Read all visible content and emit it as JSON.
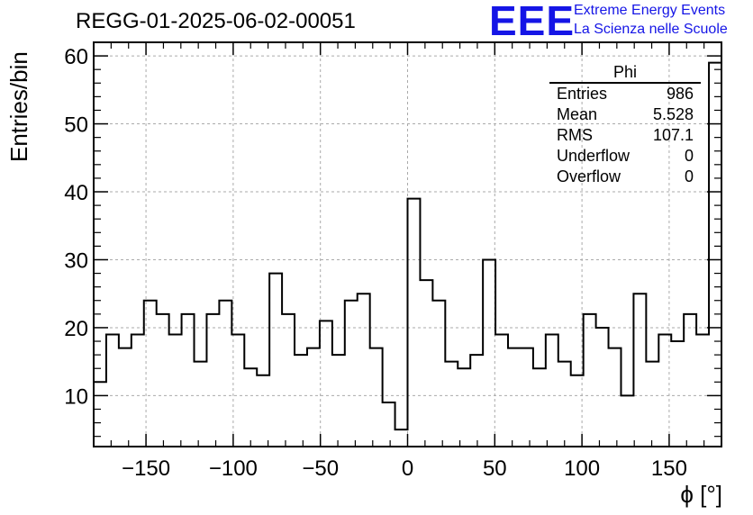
{
  "header": {
    "title": "REGG-01-2025-06-02-00051",
    "logo_text": "EEE",
    "logo_line1": "Extreme Energy Events",
    "logo_line2": "La Scienza nelle Scuole"
  },
  "stats": {
    "name": "Phi",
    "rows": [
      {
        "label": "Entries",
        "value": "986"
      },
      {
        "label": "Mean",
        "value": "5.528"
      },
      {
        "label": "RMS",
        "value": "107.1"
      },
      {
        "label": "Underflow",
        "value": "0"
      },
      {
        "label": "Overflow",
        "value": "0"
      }
    ]
  },
  "colors": {
    "logo": "#1515e6",
    "line": "#000000",
    "grid": "#aaaaaa"
  },
  "chart_data": {
    "type": "bar",
    "histogram": true,
    "title": "REGG-01-2025-06-02-00051",
    "xlabel": "ϕ [°]",
    "ylabel": "Entries/bin",
    "xlim": [
      -180,
      180
    ],
    "ylim": [
      2.5,
      62
    ],
    "grid": true,
    "bin_edges_start": -180,
    "bin_width": 7.2,
    "values": [
      12,
      19,
      17,
      19,
      24,
      22,
      19,
      22,
      15,
      22,
      24,
      19,
      14,
      13,
      28,
      22,
      16,
      17,
      21,
      16,
      24,
      25,
      17,
      9,
      5,
      39,
      27,
      24,
      15,
      14,
      16,
      30,
      19,
      17,
      17,
      14,
      19,
      15,
      13,
      22,
      20,
      17,
      10,
      25,
      15,
      19,
      18,
      22,
      19,
      59
    ],
    "x_ticks": [
      -150,
      -100,
      -50,
      0,
      50,
      100,
      150
    ],
    "x_tick_labels": [
      "−150",
      "−100",
      "−50",
      "0",
      "50",
      "100",
      "150"
    ],
    "y_ticks": [
      10,
      20,
      30,
      40,
      50,
      60
    ],
    "y_tick_labels": [
      "10",
      "20",
      "30",
      "40",
      "50",
      "60"
    ]
  }
}
